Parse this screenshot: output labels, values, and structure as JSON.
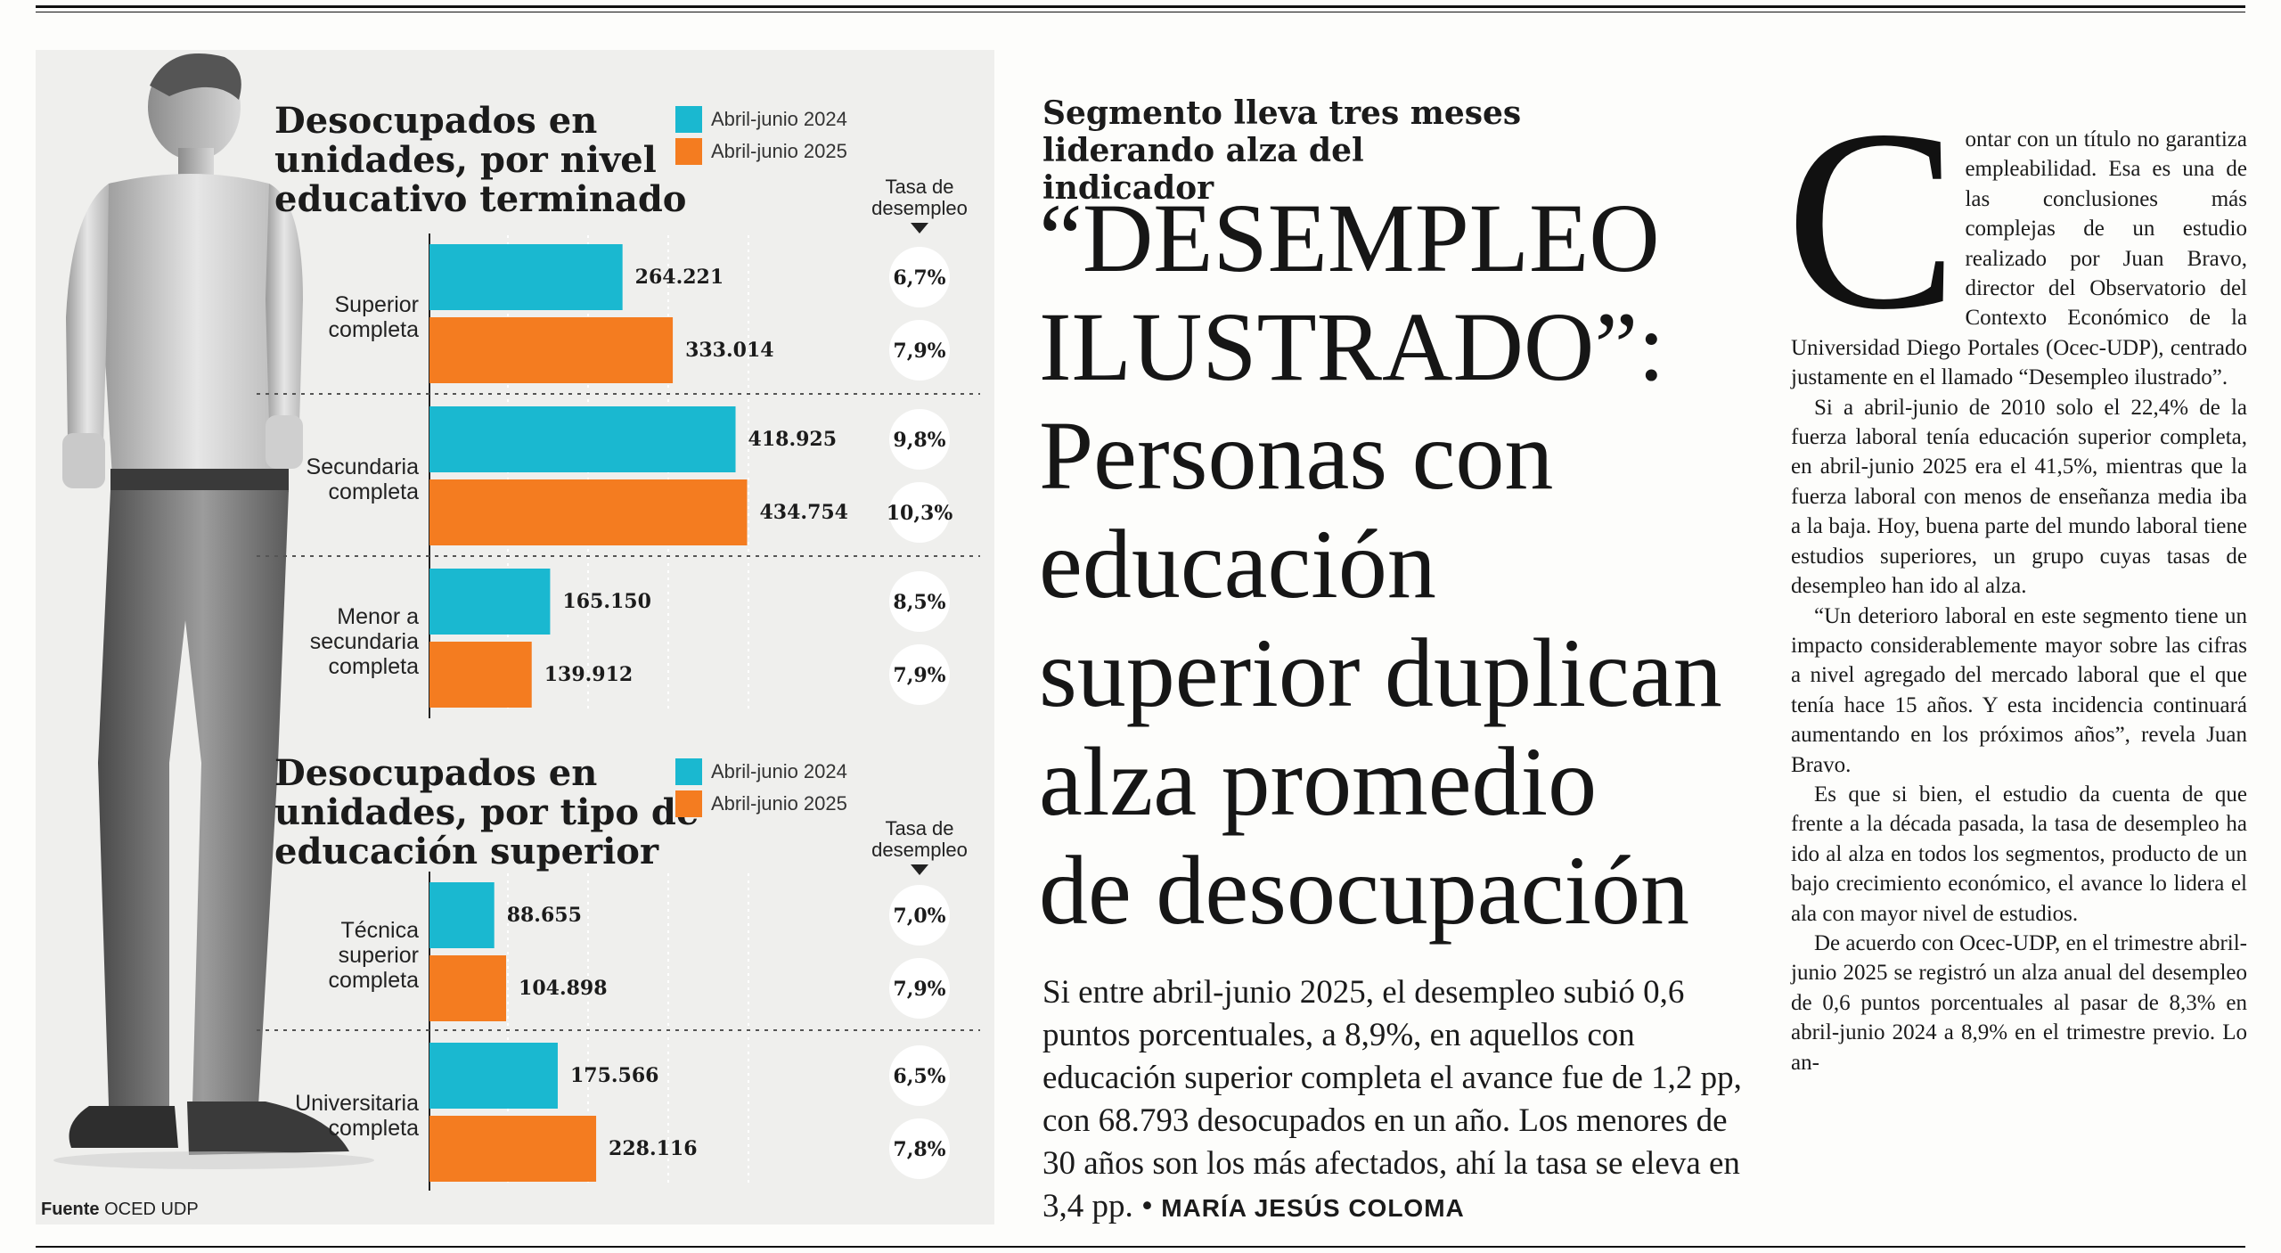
{
  "chart_data": [
    {
      "type": "bar",
      "orientation": "horizontal",
      "title": "Desocupados en unidades, por nivel educativo terminado",
      "legend": [
        "Abril-junio 2024",
        "Abril-junio 2025"
      ],
      "categories": [
        "Superior completa",
        "Secundaria completa",
        "Menor a secundaria completa"
      ],
      "category_lines": [
        [
          "Superior",
          "completa"
        ],
        [
          "Secundaria",
          "completa"
        ],
        [
          "Menor a",
          "secundaria",
          "completa"
        ]
      ],
      "series": [
        {
          "name": "Abril-junio 2024",
          "values": [
            264221,
            418925,
            165150
          ],
          "labels": [
            "264.221",
            "418.925",
            "165.150"
          ],
          "rates": [
            "6,7%",
            "9,8%",
            "8,5%"
          ]
        },
        {
          "name": "Abril-junio 2025",
          "values": [
            333014,
            434754,
            139912
          ],
          "labels": [
            "333.014",
            "434.754",
            "139.912"
          ],
          "rates": [
            "7,9%",
            "10,3%",
            "7,9%"
          ]
        }
      ],
      "rate_header": [
        "Tasa de",
        "desempleo"
      ],
      "xlim": [
        0,
        500000
      ]
    },
    {
      "type": "bar",
      "orientation": "horizontal",
      "title": "Desocupados en unidades, por tipo de educación superior",
      "legend": [
        "Abril-junio 2024",
        "Abril-junio 2025"
      ],
      "categories": [
        "Técnica superior completa",
        "Universitaria completa"
      ],
      "category_lines": [
        [
          "Técnica",
          "superior",
          "completa"
        ],
        [
          "Universitaria",
          "completa"
        ]
      ],
      "series": [
        {
          "name": "Abril-junio 2024",
          "values": [
            88655,
            175566
          ],
          "labels": [
            "88.655",
            "175.566"
          ],
          "rates": [
            "7,0%",
            "6,5%"
          ]
        },
        {
          "name": "Abril-junio 2025",
          "values": [
            104898,
            228116
          ],
          "labels": [
            "104.898",
            "228.116"
          ],
          "rates": [
            "7,9%",
            "7,8%"
          ]
        }
      ],
      "rate_header": [
        "Tasa de",
        "desempleo"
      ],
      "xlim": [
        0,
        500000
      ]
    }
  ],
  "colors": {
    "series_2024": "#1ab8d0",
    "series_2025": "#f47c20"
  },
  "chart1": {
    "title_lines": [
      "Desocupados en",
      "unidades, por nivel",
      "educativo terminado"
    ],
    "legend_2024": "Abril-junio 2024",
    "legend_2025": "Abril-junio 2025",
    "tasa_line1": "Tasa de",
    "tasa_line2": "desempleo"
  },
  "chart2": {
    "title_lines": [
      "Desocupados en",
      "unidades, por tipo de",
      "educación superior"
    ],
    "legend_2024": "Abril-junio 2024",
    "legend_2025": "Abril-junio 2025",
    "tasa_line1": "Tasa de",
    "tasa_line2": "desempleo"
  },
  "source": {
    "label": "Fuente",
    "value": "OCED UDP"
  },
  "kicker_lines": [
    "Segmento lleva tres meses",
    "liderando alza del indicador"
  ],
  "headline_lines": [
    "“DESEMPLEO",
    "ILUSTRADO”:",
    "Personas con",
    "educación",
    "superior duplican",
    "alza promedio",
    "de desocupación"
  ],
  "lead": "Si entre abril-junio 2025, el desempleo subió 0,6 puntos porcentuales, a 8,9%, en aquellos con educación superior completa el avance fue de 1,2 pp, con 68.793 desocupados en un año. Los menores de 30 años son los más afectados, ahí la tasa se eleva en 3,4 pp. •",
  "byline": "MARÍA JESÚS COLOMA",
  "body": {
    "dropcap": "C",
    "p1": "ontar con un título no garantiza empleabilidad. Esa es una de las conclusiones más complejas de un estudio realizado por Juan Bravo, director del Observatorio del Contexto Económico de la Universidad Diego Portales (Ocec-UDP), centrado justamente en el llamado “Desempleo ilustrado”.",
    "p2": "Si a abril-junio de 2010 solo el 22,4% de la fuerza laboral tenía educación superior completa, en abril-junio 2025 era el 41,5%, mientras que la fuerza laboral con menos de enseñanza media iba a la baja. Hoy, buena parte del mundo laboral tiene estudios superiores, un grupo cuyas tasas de desempleo han ido al alza.",
    "p3": "“Un deterioro laboral en este segmento tiene un impacto considerablemente mayor sobre las cifras a nivel agregado del mercado laboral que el que tenía hace 15 años. Y esta incidencia continuará aumentando en los próximos años”, revela Juan Bravo.",
    "p4": "Es que si bien, el estudio da cuenta de que frente a la década pasada, la tasa de desempleo ha ido al alza en todos los segmentos, producto de un bajo crecimiento económico, el avance lo lidera el ala con mayor nivel de estudios.",
    "p5": "De acuerdo con Ocec-UDP, en el trimestre abril-junio 2025 se registró un alza anual del desempleo de 0,6 puntos porcentuales al pasar de 8,3% en abril-junio 2024 a 8,9% en el trimestre previo. Lo an-"
  }
}
